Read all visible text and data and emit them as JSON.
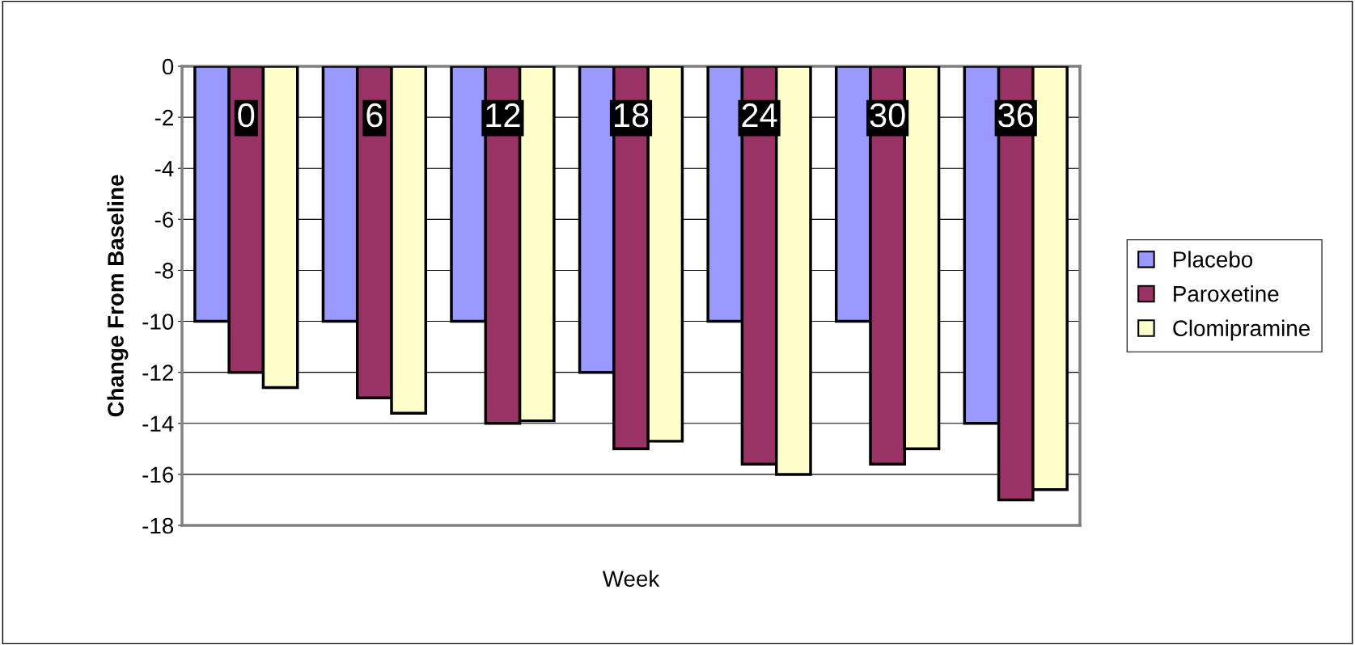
{
  "chart_data": {
    "type": "bar",
    "xlabel": "Week",
    "ylabel": "Change From Baseline",
    "categories": [
      "0",
      "6",
      "12",
      "18",
      "24",
      "30",
      "36"
    ],
    "series": [
      {
        "name": "Placebo",
        "color": "#9999ff",
        "values": [
          -10,
          -10,
          -10,
          -12,
          -10,
          -10,
          -14
        ]
      },
      {
        "name": "Paroxetine",
        "color": "#993366",
        "values": [
          -12,
          -13,
          -14,
          -15,
          -15.6,
          -15.6,
          -17
        ]
      },
      {
        "name": "Clomipramine",
        "color": "#ffffcc",
        "values": [
          -12.6,
          -13.6,
          -13.9,
          -14.7,
          -16,
          -15,
          -16.6
        ]
      }
    ],
    "ylim": [
      -18,
      0
    ],
    "yticks": [
      -18,
      -16,
      -14,
      -12,
      -10,
      -8,
      -6,
      -4,
      -2,
      0
    ],
    "grid": "y",
    "legend": "right"
  }
}
